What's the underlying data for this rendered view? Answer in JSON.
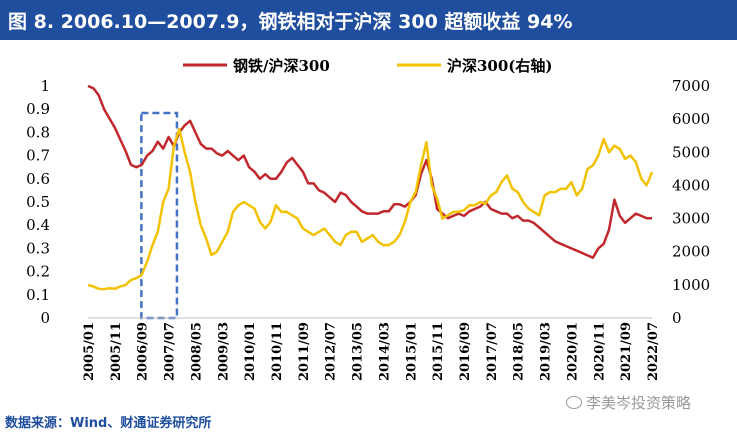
{
  "title": "图 8. 2006.10—2007.9，钢铁相对于沪深 300 超额收益 94%",
  "source": "数据来源：Wind、财通证券研究所",
  "watermark": "李美岑投资策略",
  "colors": {
    "title_bg": "#1F4E9E",
    "series1": "#C0282D",
    "series2": "#F2C200",
    "highlight": "#4472C4",
    "source_text": "#1F4E9E"
  },
  "chart_data": {
    "type": "line",
    "title": "",
    "left_axis": {
      "ylim": [
        0,
        1
      ],
      "ticks": [
        "0",
        "0.1",
        "0.2",
        "0.3",
        "0.4",
        "0.5",
        "0.6",
        "0.7",
        "0.8",
        "0.9",
        "1"
      ]
    },
    "right_axis": {
      "ylim": [
        0,
        7000
      ],
      "ticks": [
        "0",
        "1000",
        "2000",
        "3000",
        "4000",
        "5000",
        "6000",
        "7000"
      ]
    },
    "x_ticks": [
      "2005/01",
      "2005/11",
      "2006/09",
      "2007/07",
      "2008/05",
      "2009/03",
      "2010/01",
      "2010/11",
      "2011/09",
      "2012/07",
      "2013/05",
      "2014/03",
      "2015/01",
      "2015/11",
      "2016/09",
      "2017/07",
      "2018/05",
      "2019/03",
      "2020/01",
      "2020/11",
      "2021/09",
      "2022/07"
    ],
    "legend": {
      "placement": "top-center",
      "entries": [
        "钢铁/沪深300",
        "沪深300(右轴)"
      ]
    },
    "highlight_period": {
      "start": "2006/10",
      "end": "2007/09"
    },
    "series": [
      {
        "name": "钢铁/沪深300",
        "axis": "left",
        "points": [
          [
            "2005/01",
            1.0
          ],
          [
            "2005/03",
            0.99
          ],
          [
            "2005/05",
            0.96
          ],
          [
            "2005/07",
            0.9
          ],
          [
            "2005/09",
            0.86
          ],
          [
            "2005/11",
            0.82
          ],
          [
            "2006/01",
            0.77
          ],
          [
            "2006/03",
            0.72
          ],
          [
            "2006/05",
            0.66
          ],
          [
            "2006/07",
            0.65
          ],
          [
            "2006/09",
            0.66
          ],
          [
            "2006/11",
            0.7
          ],
          [
            "2007/01",
            0.72
          ],
          [
            "2007/03",
            0.76
          ],
          [
            "2007/05",
            0.73
          ],
          [
            "2007/07",
            0.78
          ],
          [
            "2007/09",
            0.74
          ],
          [
            "2007/11",
            0.8
          ],
          [
            "2008/01",
            0.83
          ],
          [
            "2008/03",
            0.85
          ],
          [
            "2008/05",
            0.8
          ],
          [
            "2008/07",
            0.75
          ],
          [
            "2008/09",
            0.73
          ],
          [
            "2008/11",
            0.73
          ],
          [
            "2009/01",
            0.71
          ],
          [
            "2009/03",
            0.7
          ],
          [
            "2009/05",
            0.72
          ],
          [
            "2009/07",
            0.7
          ],
          [
            "2009/09",
            0.68
          ],
          [
            "2009/11",
            0.7
          ],
          [
            "2010/01",
            0.65
          ],
          [
            "2010/03",
            0.63
          ],
          [
            "2010/05",
            0.6
          ],
          [
            "2010/07",
            0.62
          ],
          [
            "2010/09",
            0.6
          ],
          [
            "2010/11",
            0.6
          ],
          [
            "2011/01",
            0.63
          ],
          [
            "2011/03",
            0.67
          ],
          [
            "2011/05",
            0.69
          ],
          [
            "2011/07",
            0.66
          ],
          [
            "2011/09",
            0.63
          ],
          [
            "2011/11",
            0.58
          ],
          [
            "2012/01",
            0.58
          ],
          [
            "2012/03",
            0.55
          ],
          [
            "2012/05",
            0.54
          ],
          [
            "2012/07",
            0.52
          ],
          [
            "2012/09",
            0.5
          ],
          [
            "2012/11",
            0.54
          ],
          [
            "2013/01",
            0.53
          ],
          [
            "2013/03",
            0.5
          ],
          [
            "2013/05",
            0.48
          ],
          [
            "2013/07",
            0.46
          ],
          [
            "2013/09",
            0.45
          ],
          [
            "2013/11",
            0.45
          ],
          [
            "2014/01",
            0.45
          ],
          [
            "2014/03",
            0.46
          ],
          [
            "2014/05",
            0.46
          ],
          [
            "2014/07",
            0.49
          ],
          [
            "2014/09",
            0.49
          ],
          [
            "2014/11",
            0.48
          ],
          [
            "2015/01",
            0.5
          ],
          [
            "2015/03",
            0.53
          ],
          [
            "2015/05",
            0.62
          ],
          [
            "2015/07",
            0.68
          ],
          [
            "2015/09",
            0.6
          ],
          [
            "2015/11",
            0.47
          ],
          [
            "2016/01",
            0.45
          ],
          [
            "2016/03",
            0.43
          ],
          [
            "2016/05",
            0.44
          ],
          [
            "2016/07",
            0.45
          ],
          [
            "2016/09",
            0.44
          ],
          [
            "2016/11",
            0.46
          ],
          [
            "2017/01",
            0.47
          ],
          [
            "2017/03",
            0.48
          ],
          [
            "2017/05",
            0.5
          ],
          [
            "2017/07",
            0.47
          ],
          [
            "2017/09",
            0.46
          ],
          [
            "2017/11",
            0.45
          ],
          [
            "2018/01",
            0.45
          ],
          [
            "2018/03",
            0.43
          ],
          [
            "2018/05",
            0.44
          ],
          [
            "2018/07",
            0.42
          ],
          [
            "2018/09",
            0.42
          ],
          [
            "2018/11",
            0.41
          ],
          [
            "2019/01",
            0.39
          ],
          [
            "2019/03",
            0.37
          ],
          [
            "2019/05",
            0.35
          ],
          [
            "2019/07",
            0.33
          ],
          [
            "2019/09",
            0.32
          ],
          [
            "2019/11",
            0.31
          ],
          [
            "2020/01",
            0.3
          ],
          [
            "2020/03",
            0.29
          ],
          [
            "2020/05",
            0.28
          ],
          [
            "2020/07",
            0.27
          ],
          [
            "2020/09",
            0.26
          ],
          [
            "2020/11",
            0.3
          ],
          [
            "2021/01",
            0.32
          ],
          [
            "2021/03",
            0.38
          ],
          [
            "2021/05",
            0.51
          ],
          [
            "2021/07",
            0.44
          ],
          [
            "2021/09",
            0.41
          ],
          [
            "2021/11",
            0.43
          ],
          [
            "2022/01",
            0.45
          ],
          [
            "2022/03",
            0.44
          ],
          [
            "2022/05",
            0.43
          ],
          [
            "2022/07",
            0.43
          ]
        ]
      },
      {
        "name": "沪深300(右轴)",
        "axis": "right",
        "points": [
          [
            "2005/01",
            1000
          ],
          [
            "2005/03",
            950
          ],
          [
            "2005/05",
            880
          ],
          [
            "2005/07",
            870
          ],
          [
            "2005/09",
            900
          ],
          [
            "2005/11",
            880
          ],
          [
            "2006/01",
            950
          ],
          [
            "2006/03",
            1000
          ],
          [
            "2006/05",
            1150
          ],
          [
            "2006/07",
            1200
          ],
          [
            "2006/09",
            1300
          ],
          [
            "2006/11",
            1700
          ],
          [
            "2007/01",
            2200
          ],
          [
            "2007/03",
            2600
          ],
          [
            "2007/05",
            3500
          ],
          [
            "2007/07",
            3900
          ],
          [
            "2007/09",
            5200
          ],
          [
            "2007/11",
            5700
          ],
          [
            "2008/01",
            5000
          ],
          [
            "2008/03",
            4400
          ],
          [
            "2008/05",
            3500
          ],
          [
            "2008/07",
            2800
          ],
          [
            "2008/09",
            2400
          ],
          [
            "2008/11",
            1900
          ],
          [
            "2009/01",
            2000
          ],
          [
            "2009/03",
            2300
          ],
          [
            "2009/05",
            2600
          ],
          [
            "2009/07",
            3200
          ],
          [
            "2009/09",
            3400
          ],
          [
            "2009/11",
            3500
          ],
          [
            "2010/01",
            3400
          ],
          [
            "2010/03",
            3300
          ],
          [
            "2010/05",
            2900
          ],
          [
            "2010/07",
            2700
          ],
          [
            "2010/09",
            2900
          ],
          [
            "2010/11",
            3400
          ],
          [
            "2011/01",
            3200
          ],
          [
            "2011/03",
            3200
          ],
          [
            "2011/05",
            3100
          ],
          [
            "2011/07",
            3000
          ],
          [
            "2011/09",
            2700
          ],
          [
            "2011/11",
            2600
          ],
          [
            "2012/01",
            2500
          ],
          [
            "2012/03",
            2600
          ],
          [
            "2012/05",
            2700
          ],
          [
            "2012/07",
            2500
          ],
          [
            "2012/09",
            2300
          ],
          [
            "2012/11",
            2200
          ],
          [
            "2013/01",
            2500
          ],
          [
            "2013/03",
            2600
          ],
          [
            "2013/05",
            2600
          ],
          [
            "2013/07",
            2300
          ],
          [
            "2013/09",
            2400
          ],
          [
            "2013/11",
            2500
          ],
          [
            "2014/01",
            2300
          ],
          [
            "2014/03",
            2200
          ],
          [
            "2014/05",
            2200
          ],
          [
            "2014/07",
            2300
          ],
          [
            "2014/09",
            2500
          ],
          [
            "2014/11",
            2900
          ],
          [
            "2015/01",
            3500
          ],
          [
            "2015/03",
            3800
          ],
          [
            "2015/05",
            4600
          ],
          [
            "2015/07",
            5300
          ],
          [
            "2015/09",
            4000
          ],
          [
            "2015/11",
            3600
          ],
          [
            "2016/01",
            3000
          ],
          [
            "2016/03",
            3100
          ],
          [
            "2016/05",
            3200
          ],
          [
            "2016/07",
            3200
          ],
          [
            "2016/09",
            3250
          ],
          [
            "2016/11",
            3400
          ],
          [
            "2017/01",
            3400
          ],
          [
            "2017/03",
            3500
          ],
          [
            "2017/05",
            3450
          ],
          [
            "2017/07",
            3700
          ],
          [
            "2017/09",
            3800
          ],
          [
            "2017/11",
            4100
          ],
          [
            "2018/01",
            4300
          ],
          [
            "2018/03",
            3900
          ],
          [
            "2018/05",
            3800
          ],
          [
            "2018/07",
            3500
          ],
          [
            "2018/09",
            3300
          ],
          [
            "2018/11",
            3200
          ],
          [
            "2019/01",
            3100
          ],
          [
            "2019/03",
            3700
          ],
          [
            "2019/05",
            3800
          ],
          [
            "2019/07",
            3800
          ],
          [
            "2019/09",
            3900
          ],
          [
            "2019/11",
            3900
          ],
          [
            "2020/01",
            4100
          ],
          [
            "2020/03",
            3700
          ],
          [
            "2020/05",
            3900
          ],
          [
            "2020/07",
            4500
          ],
          [
            "2020/09",
            4600
          ],
          [
            "2020/11",
            4900
          ],
          [
            "2021/01",
            5400
          ],
          [
            "2021/03",
            5000
          ],
          [
            "2021/05",
            5200
          ],
          [
            "2021/07",
            5100
          ],
          [
            "2021/09",
            4800
          ],
          [
            "2021/11",
            4900
          ],
          [
            "2022/01",
            4700
          ],
          [
            "2022/03",
            4200
          ],
          [
            "2022/05",
            4000
          ],
          [
            "2022/07",
            4400
          ]
        ]
      }
    ]
  }
}
